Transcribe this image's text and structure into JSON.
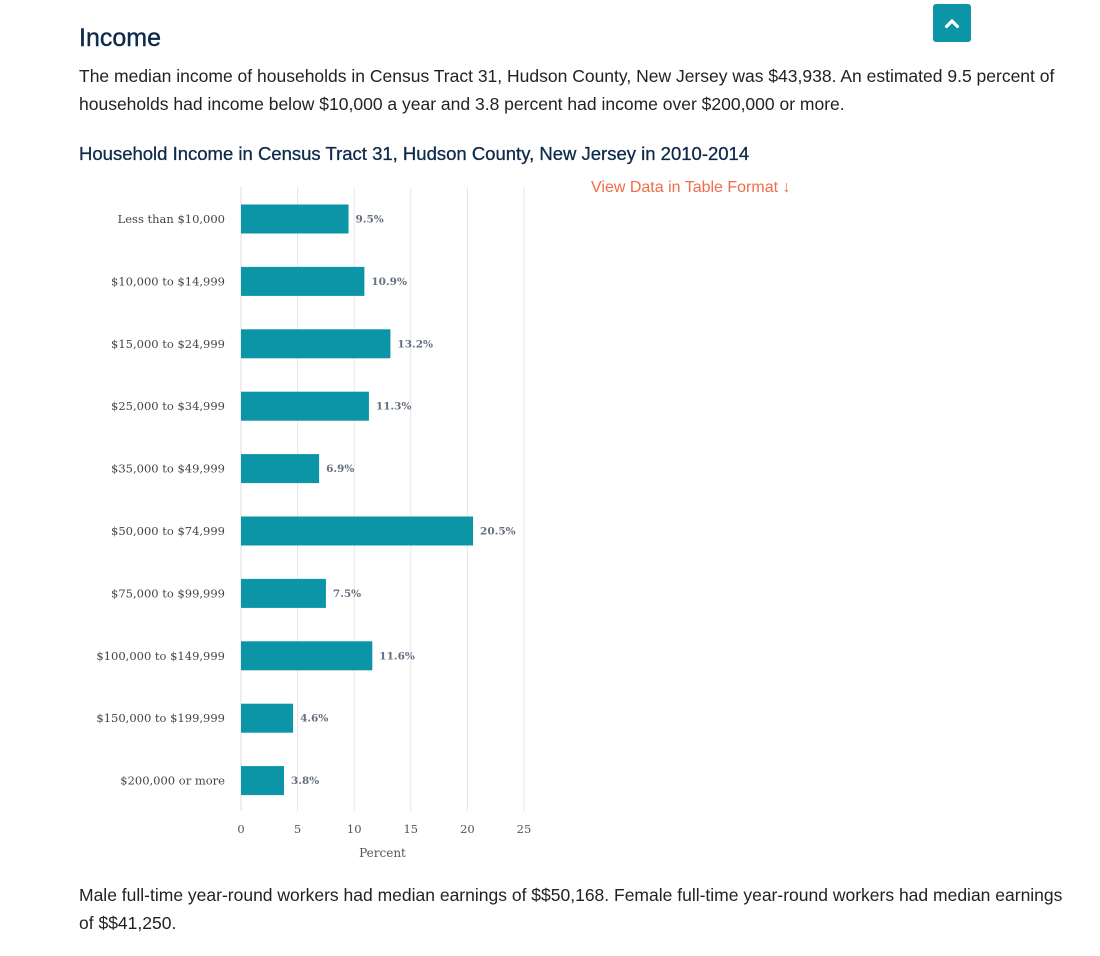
{
  "section": {
    "title": "Income",
    "intro": "The median income of households in Census Tract 31, Hudson County, New Jersey was $43,938. An estimated 9.5 percent of households had income below $10,000 a year and 3.8 percent had income over $200,000 or more.",
    "outro": "Male full-time year-round workers had median earnings of $$50,168. Female full-time year-round workers had median earnings of $$41,250."
  },
  "controls": {
    "scroll_top_icon": "chevron-up-icon",
    "table_link": "View Data in Table Format ↓"
  },
  "colors": {
    "bar": "#0b95a6",
    "title": "#0f2a4a",
    "link": "#f26b4a",
    "button": "#0b95a6"
  },
  "chart_data": {
    "type": "bar",
    "orientation": "horizontal",
    "title": "Household Income in Census Tract 31, Hudson County, New Jersey in 2010-2014",
    "xlabel": "Percent",
    "ylabel": "",
    "categories": [
      "Less than $10,000",
      "$10,000 to $14,999",
      "$15,000 to $24,999",
      "$25,000 to $34,999",
      "$35,000 to $49,999",
      "$50,000 to $74,999",
      "$75,000 to $99,999",
      "$100,000 to $149,999",
      "$150,000 to $199,999",
      "$200,000 or more"
    ],
    "values": [
      9.5,
      10.9,
      13.2,
      11.3,
      6.9,
      20.5,
      7.5,
      11.6,
      4.6,
      3.8
    ],
    "data_labels": [
      "9.5%",
      "10.9%",
      "13.2%",
      "11.3%",
      "6.9%",
      "20.5%",
      "7.5%",
      "11.6%",
      "4.6%",
      "3.8%"
    ],
    "xlim": [
      0,
      25
    ],
    "xticks": [
      0,
      5,
      10,
      15,
      20,
      25
    ],
    "grid": true,
    "legend": "none"
  }
}
